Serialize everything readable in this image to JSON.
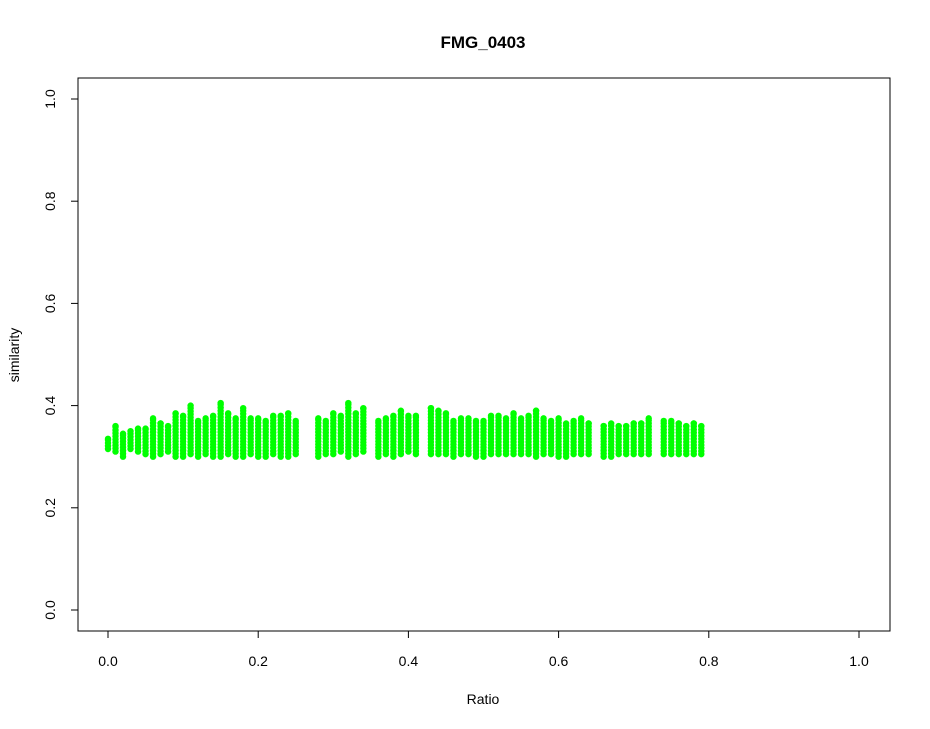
{
  "chart_data": {
    "type": "scatter",
    "title": "FMG_0403",
    "xlabel": "Ratio",
    "ylabel": "similarity",
    "xlim": [
      0.0,
      1.0
    ],
    "ylim": [
      0.0,
      1.0
    ],
    "xticks": [
      "0.0",
      "0.2",
      "0.4",
      "0.6",
      "0.8",
      "1.0"
    ],
    "yticks": [
      "0.0",
      "0.2",
      "0.4",
      "0.6",
      "0.8",
      "1.0"
    ],
    "grid": false,
    "legend": "none",
    "point_color": "#00ff00",
    "x_columns": [
      0.0,
      0.01,
      0.02,
      0.03,
      0.04,
      0.05,
      0.06,
      0.07,
      0.08,
      0.09,
      0.1,
      0.11,
      0.12,
      0.13,
      0.14,
      0.15,
      0.16,
      0.17,
      0.18,
      0.19,
      0.2,
      0.21,
      0.22,
      0.23,
      0.24,
      0.25,
      0.28,
      0.29,
      0.3,
      0.31,
      0.32,
      0.33,
      0.34,
      0.36,
      0.37,
      0.38,
      0.39,
      0.4,
      0.41,
      0.43,
      0.44,
      0.45,
      0.46,
      0.47,
      0.48,
      0.49,
      0.5,
      0.51,
      0.52,
      0.53,
      0.54,
      0.55,
      0.56,
      0.57,
      0.58,
      0.59,
      0.6,
      0.61,
      0.62,
      0.63,
      0.64,
      0.66,
      0.67,
      0.68,
      0.69,
      0.7,
      0.71,
      0.72,
      0.74,
      0.75,
      0.76,
      0.77,
      0.78,
      0.79
    ],
    "y_min": [
      0.315,
      0.31,
      0.3,
      0.315,
      0.31,
      0.305,
      0.3,
      0.305,
      0.31,
      0.3,
      0.3,
      0.305,
      0.3,
      0.305,
      0.3,
      0.3,
      0.305,
      0.3,
      0.3,
      0.305,
      0.3,
      0.3,
      0.305,
      0.3,
      0.3,
      0.305,
      0.3,
      0.305,
      0.305,
      0.31,
      0.3,
      0.305,
      0.31,
      0.3,
      0.305,
      0.3,
      0.305,
      0.31,
      0.305,
      0.305,
      0.305,
      0.305,
      0.3,
      0.305,
      0.305,
      0.3,
      0.3,
      0.305,
      0.305,
      0.305,
      0.305,
      0.305,
      0.305,
      0.3,
      0.305,
      0.305,
      0.3,
      0.3,
      0.305,
      0.305,
      0.305,
      0.3,
      0.3,
      0.305,
      0.305,
      0.305,
      0.305,
      0.305,
      0.305,
      0.305,
      0.305,
      0.305,
      0.305,
      0.305
    ],
    "y_max": [
      0.335,
      0.36,
      0.345,
      0.35,
      0.355,
      0.355,
      0.375,
      0.365,
      0.36,
      0.385,
      0.38,
      0.4,
      0.37,
      0.375,
      0.38,
      0.405,
      0.385,
      0.375,
      0.395,
      0.375,
      0.375,
      0.37,
      0.38,
      0.38,
      0.385,
      0.37,
      0.375,
      0.37,
      0.385,
      0.38,
      0.405,
      0.385,
      0.395,
      0.37,
      0.375,
      0.38,
      0.39,
      0.38,
      0.38,
      0.395,
      0.39,
      0.385,
      0.37,
      0.375,
      0.375,
      0.37,
      0.37,
      0.38,
      0.38,
      0.375,
      0.385,
      0.375,
      0.38,
      0.39,
      0.375,
      0.37,
      0.375,
      0.365,
      0.37,
      0.375,
      0.365,
      0.36,
      0.365,
      0.36,
      0.36,
      0.365,
      0.365,
      0.375,
      0.37,
      0.37,
      0.365,
      0.36,
      0.365,
      0.36
    ]
  }
}
